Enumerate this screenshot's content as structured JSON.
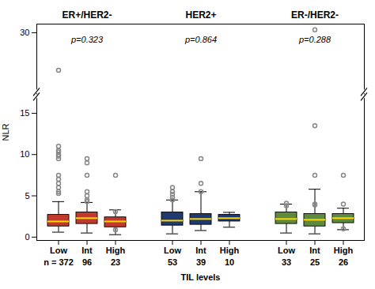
{
  "chart_data": {
    "type": "box",
    "xlabel": "TIL levels",
    "ylabel": "NLR",
    "ylim": [
      -0.4,
      33
    ],
    "yticks": [
      0,
      5,
      10,
      15,
      30
    ],
    "y_break": {
      "at": 15,
      "gap": 4.5,
      "scale_above": 0.35
    },
    "grid": false,
    "median_color": "#FFD700",
    "outlier_color": "#888888",
    "p_value_y": 27.5,
    "series": [
      {
        "name": "ER+/HER2-",
        "color": "#C0392B",
        "p_value": "p=0.323",
        "categories": [
          "Low",
          "Int",
          "High"
        ],
        "n_values": [
          372,
          96,
          23
        ],
        "n_value_labels": [
          "n = 372",
          "96",
          "23"
        ],
        "boxes": [
          {
            "q1": 1.3,
            "median": 1.9,
            "q3": 2.7,
            "whislo": 0.6,
            "whishi": 4.3,
            "outliers": [
              17.0,
              11.0,
              10.5,
              10.3,
              10.0,
              9.8,
              9.5,
              7.5,
              7.0,
              6.5,
              6.0,
              5.5,
              5.3
            ]
          },
          {
            "q1": 1.6,
            "median": 2.3,
            "q3": 3.0,
            "whislo": 0.5,
            "whishi": 4.2,
            "outliers": [
              9.5,
              9.0,
              7.5,
              5.5,
              5.0,
              4.5,
              4.3
            ]
          },
          {
            "q1": 1.2,
            "median": 1.9,
            "q3": 2.4,
            "whislo": 0.3,
            "whishi": 3.3,
            "outliers": [
              7.5,
              3.1,
              0.9
            ]
          }
        ]
      },
      {
        "name": "HER2+",
        "color": "#1F3A6E",
        "p_value": "p=0.864",
        "categories": [
          "Low",
          "Int",
          "High"
        ],
        "n_values": [
          53,
          39,
          10
        ],
        "n_value_labels": [
          "53",
          "39",
          "10"
        ],
        "boxes": [
          {
            "q1": 1.4,
            "median": 2.0,
            "q3": 3.0,
            "whislo": 0.4,
            "whishi": 4.5,
            "outliers": [
              6.0,
              5.5,
              5.2,
              4.8,
              4.5
            ]
          },
          {
            "q1": 1.5,
            "median": 2.2,
            "q3": 2.8,
            "whislo": 0.8,
            "whishi": 5.5,
            "outliers": [
              9.5,
              6.5,
              5.5
            ]
          },
          {
            "q1": 1.9,
            "median": 2.3,
            "q3": 2.7,
            "whislo": 1.2,
            "whishi": 3.0,
            "outliers": []
          }
        ]
      },
      {
        "name": "ER-/HER2-",
        "color": "#5D8A3C",
        "p_value": "p=0.288",
        "categories": [
          "Low",
          "Int",
          "High"
        ],
        "n_values": [
          33,
          25,
          26
        ],
        "n_value_labels": [
          "33",
          "25",
          "26"
        ],
        "boxes": [
          {
            "q1": 1.6,
            "median": 2.2,
            "q3": 3.0,
            "whislo": 0.5,
            "whishi": 4.0,
            "outliers": [
              4.1,
              3.8
            ]
          },
          {
            "q1": 1.3,
            "median": 2.1,
            "q3": 2.8,
            "whislo": 0.4,
            "whishi": 5.8,
            "outliers": [
              31.0,
              13.5,
              7.5,
              4.0,
              3.9
            ]
          },
          {
            "q1": 1.7,
            "median": 2.3,
            "q3": 2.8,
            "whislo": 0.9,
            "whishi": 3.5,
            "outliers": [
              7.5,
              4.0,
              1.0
            ]
          }
        ]
      }
    ]
  }
}
